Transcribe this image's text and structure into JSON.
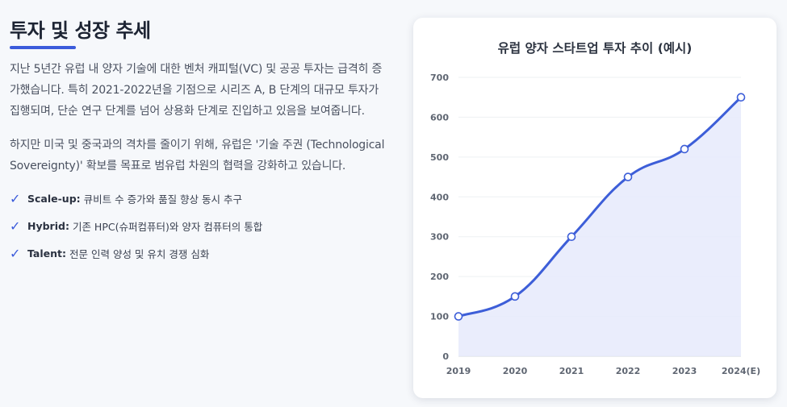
{
  "section": {
    "title": "투자 및 성장 추세",
    "paragraph1": "지난 5년간 유럽 내 양자 기술에 대한 벤처 캐피털(VC) 및 공공 투자는 급격히 증가했습니다. 특히 2021-2022년을 기점으로 시리즈 A, B 단계의 대규모 투자가 집행되며, 단순 연구 단계를 넘어 상용화 단계로 진입하고 있음을 보여줍니다.",
    "paragraph2": "하지만 미국 및 중국과의 격차를 줄이기 위해, 유럽은 '기술 주권 (Technological Sovereignty)' 확보를 목표로 범유럽 차원의 협력을 강화하고 있습니다.",
    "check_glyph": "✓",
    "bullets": [
      {
        "label": "Scale-up:",
        "text": "큐비트 수 증가와 품질 향상 동시 추구"
      },
      {
        "label": "Hybrid:",
        "text": "기존 HPC(슈퍼컴퓨터)와 양자 컴퓨터의 통합"
      },
      {
        "label": "Talent:",
        "text": "전문 인력 양성 및 유치 경쟁 심화"
      }
    ]
  },
  "colors": {
    "accent": "#3b5bdb",
    "line": "#3d5ed8",
    "fill": "#e6eafb"
  },
  "chart_data": {
    "type": "area",
    "title": "유럽 양자 스타트업 투자 추이 (예시)",
    "categories": [
      "2019",
      "2020",
      "2021",
      "2022",
      "2023",
      "2024(E)"
    ],
    "values": [
      100,
      150,
      300,
      450,
      520,
      650
    ],
    "ylim": [
      0,
      700
    ],
    "yticks": [
      0,
      100,
      200,
      300,
      400,
      500,
      600,
      700
    ],
    "grid": true,
    "xlabel": "",
    "ylabel": ""
  }
}
